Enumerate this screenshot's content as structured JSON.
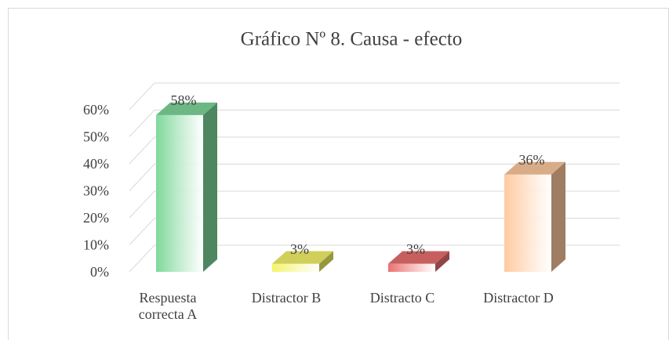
{
  "chart_data": {
    "type": "bar3d",
    "title": "Gráfico Nº 8. Causa - efecto",
    "categories": [
      "Respuesta correcta A",
      "Distractor B",
      "Distracto C",
      "Distractor D"
    ],
    "values": [
      58,
      3,
      3,
      36
    ],
    "value_labels": [
      "58%",
      "3%",
      "3%",
      "36%"
    ],
    "colors": [
      "#7fd89c",
      "#f4f46a",
      "#ec7070",
      "#ffcaa0"
    ],
    "ylim": [
      0,
      60
    ],
    "yticks": [
      {
        "value": 0,
        "label": "0%"
      },
      {
        "value": 10,
        "label": "10%"
      },
      {
        "value": 20,
        "label": "20%"
      },
      {
        "value": 30,
        "label": "30%"
      },
      {
        "value": 40,
        "label": "40%"
      },
      {
        "value": 50,
        "label": "50%"
      },
      {
        "value": 60,
        "label": "60%"
      }
    ],
    "grid": true
  }
}
